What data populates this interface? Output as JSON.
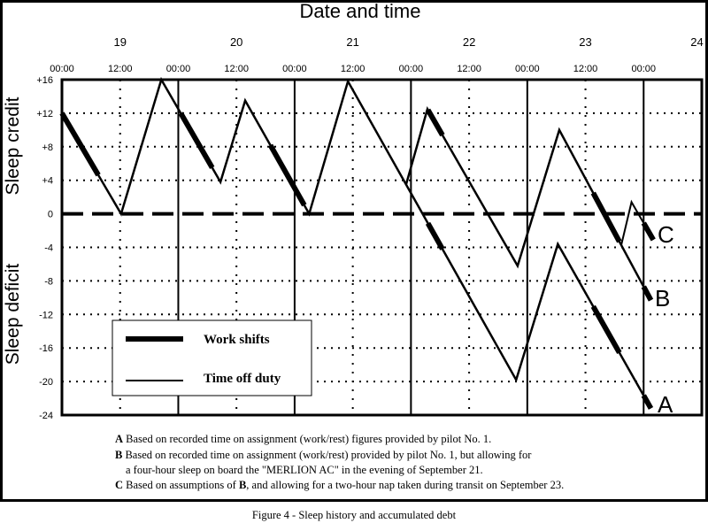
{
  "chart_data": {
    "type": "line",
    "title": "Date and time",
    "ylabel_top": "Sleep credit",
    "ylabel_bottom": "Sleep deficit",
    "xunit": "hours since 00:00 on day 19",
    "xlim": [
      0,
      132
    ],
    "ylim": [
      -24,
      16
    ],
    "grid": true,
    "y_ticks": [
      {
        "value": 16,
        "label": "+16"
      },
      {
        "value": 12,
        "label": "+12"
      },
      {
        "value": 8,
        "label": "+8"
      },
      {
        "value": 4,
        "label": "+4"
      },
      {
        "value": 0,
        "label": "0"
      },
      {
        "value": -4,
        "label": "-4"
      },
      {
        "value": -8,
        "label": "-8"
      },
      {
        "value": -12,
        "label": "-12"
      },
      {
        "value": -16,
        "label": "-16"
      },
      {
        "value": -20,
        "label": "-20"
      },
      {
        "value": -24,
        "label": "-24"
      }
    ],
    "day_labels": [
      {
        "hour": 12,
        "label": "19"
      },
      {
        "hour": 36,
        "label": "20"
      },
      {
        "hour": 60,
        "label": "21"
      },
      {
        "hour": 84,
        "label": "22"
      },
      {
        "hour": 108,
        "label": "23"
      },
      {
        "hour": 131,
        "label": "24"
      }
    ],
    "time_labels": [
      {
        "hour": 0,
        "label": "00:00"
      },
      {
        "hour": 12,
        "label": "12:00"
      },
      {
        "hour": 24,
        "label": "00:00"
      },
      {
        "hour": 36,
        "label": "12:00"
      },
      {
        "hour": 48,
        "label": "00:00"
      },
      {
        "hour": 60,
        "label": "12:00"
      },
      {
        "hour": 72,
        "label": "00:00"
      },
      {
        "hour": 84,
        "label": "12:00"
      },
      {
        "hour": 96,
        "label": "00:00"
      },
      {
        "hour": 108,
        "label": "12:00"
      },
      {
        "hour": 120,
        "label": "00:00"
      }
    ],
    "series": [
      {
        "name": "A",
        "points": [
          [
            0,
            12
          ],
          [
            12.2,
            0
          ],
          [
            20.5,
            16
          ],
          [
            32.7,
            3.8
          ],
          [
            37.8,
            13.5
          ],
          [
            51,
            0
          ],
          [
            59,
            15.8
          ],
          [
            93.7,
            -19.8
          ],
          [
            102.3,
            -3.6
          ],
          [
            121.5,
            -23.2
          ]
        ]
      },
      {
        "name": "B",
        "points": [
          [
            71,
            3.5
          ],
          [
            75.4,
            12.5
          ],
          [
            94,
            -6.2
          ],
          [
            102.6,
            10
          ],
          [
            121.5,
            -10.3
          ]
        ]
      },
      {
        "name": "C",
        "points": [
          [
            115.4,
            -3.7
          ],
          [
            117.5,
            1.4
          ],
          [
            122,
            -3.1
          ]
        ]
      }
    ],
    "work_shift_intervals": [
      [
        0,
        7.5
      ],
      [
        24.5,
        31
      ],
      [
        43,
        50
      ],
      [
        75.5,
        78.5
      ],
      [
        109.6,
        115
      ],
      [
        120,
        122
      ]
    ],
    "legend": {
      "placement": "bottom-left",
      "work_shifts": "Work shifts",
      "time_off_duty": "Time off duty"
    }
  },
  "footnotes": {
    "a_key": "A",
    "a_text": " Based on recorded time on assignment (work/rest) figures provided by pilot No. 1.",
    "b_key": "B",
    "b_text": " Based on recorded time on assignment (work/rest) provided by pilot No. 1, but allowing for",
    "b_text2": "a four-hour sleep on board the \"MERLION AC\" in the evening of September 21.",
    "c_key": "C",
    "c_text1": " Based on assumptions of ",
    "c_key_inline": "B",
    "c_text2": ", and allowing for a two-hour nap taken during transit on September 23."
  },
  "caption": "Figure 4 - Sleep history and accumulated debt"
}
